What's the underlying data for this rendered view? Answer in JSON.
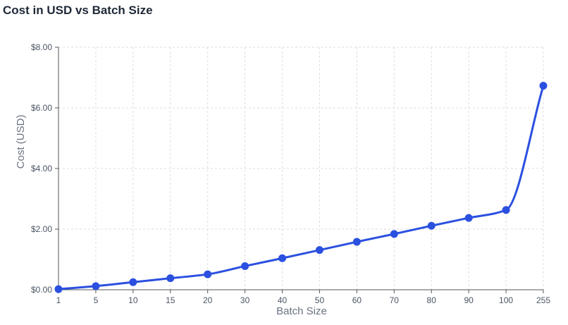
{
  "chart_data": {
    "type": "line",
    "title": "Cost in USD vs Batch Size",
    "xlabel": "Batch Size",
    "ylabel": "Cost (USD)",
    "categories": [
      "1",
      "5",
      "10",
      "15",
      "20",
      "30",
      "40",
      "50",
      "60",
      "70",
      "80",
      "90",
      "100",
      "255"
    ],
    "series": [
      {
        "values": [
          0.02,
          0.12,
          0.25,
          0.38,
          0.51,
          0.78,
          1.04,
          1.31,
          1.58,
          1.84,
          2.11,
          2.37,
          2.63,
          6.73
        ]
      }
    ],
    "ylim": [
      0,
      8
    ],
    "yticks": [
      "$0.00",
      "$2.00",
      "$4.00",
      "$6.00",
      "$8.00"
    ],
    "ytick_values": [
      0,
      2,
      4,
      6,
      8
    ],
    "grid": true,
    "line_color": "#2b50e0",
    "grid_color": "#dddddd",
    "axis_color": "#555555"
  }
}
